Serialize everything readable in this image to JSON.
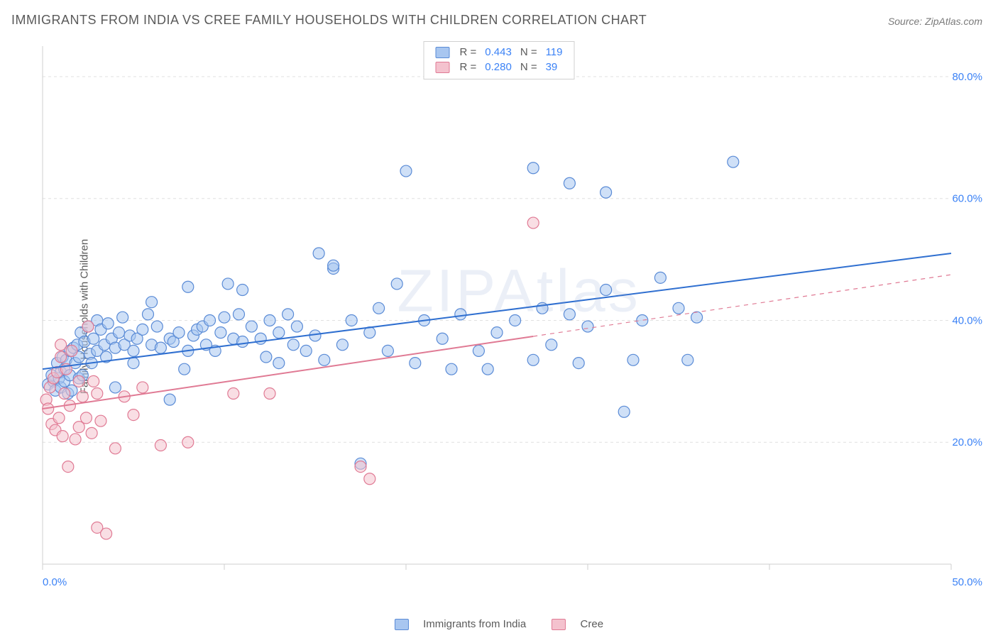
{
  "title": "IMMIGRANTS FROM INDIA VS CREE FAMILY HOUSEHOLDS WITH CHILDREN CORRELATION CHART",
  "source_label": "Source: ZipAtlas.com",
  "ylabel": "Family Households with Children",
  "watermark": "ZIPAtlas",
  "chart": {
    "type": "scatter",
    "xlim": [
      0,
      50
    ],
    "ylim": [
      0,
      85
    ],
    "xtick_step": 10,
    "ytick_step": 20,
    "xtick_labels": [
      "0.0%",
      "10.0%",
      "20.0%",
      "30.0%",
      "40.0%",
      "50.0%"
    ],
    "ytick_labels": [
      "20.0%",
      "40.0%",
      "60.0%",
      "80.0%"
    ],
    "background_color": "#ffffff",
    "grid_color": "#e0e0e0",
    "axis_color": "#cfcfcf",
    "tick_color": "#cfcfcf",
    "label_color": "#5a5a5a",
    "num_color": "#3b82f6",
    "marker_radius": 8,
    "marker_opacity": 0.55,
    "marker_stroke_width": 1.2,
    "line_width": 2
  },
  "series": [
    {
      "name": "Immigrants from India",
      "fill": "#a8c6f0",
      "stroke": "#5a8bd6",
      "line_color": "#2f6fd0",
      "trend": {
        "x1": 0,
        "y1": 32,
        "x2": 50,
        "y2": 51,
        "solid_until_x": 50
      },
      "R": "0.443",
      "N": "119",
      "points": [
        [
          0.3,
          29.5
        ],
        [
          0.5,
          31.0
        ],
        [
          0.6,
          30.0
        ],
        [
          0.7,
          28.5
        ],
        [
          0.8,
          33.0
        ],
        [
          0.9,
          30.5
        ],
        [
          1.0,
          29.0
        ],
        [
          1.0,
          31.5
        ],
        [
          1.1,
          34.0
        ],
        [
          1.2,
          32.0
        ],
        [
          1.2,
          30.0
        ],
        [
          1.3,
          33.5
        ],
        [
          1.4,
          28.0
        ],
        [
          1.5,
          35.0
        ],
        [
          1.5,
          31.0
        ],
        [
          1.6,
          28.5
        ],
        [
          1.7,
          35.5
        ],
        [
          1.8,
          33.0
        ],
        [
          1.9,
          36.0
        ],
        [
          2.0,
          34.0
        ],
        [
          2.0,
          30.5
        ],
        [
          2.1,
          38.0
        ],
        [
          2.2,
          31.0
        ],
        [
          2.3,
          36.5
        ],
        [
          2.5,
          39.0
        ],
        [
          2.6,
          34.5
        ],
        [
          2.7,
          33.0
        ],
        [
          2.8,
          37.0
        ],
        [
          3.0,
          35.0
        ],
        [
          3.0,
          40.0
        ],
        [
          3.2,
          38.5
        ],
        [
          3.4,
          36.0
        ],
        [
          3.5,
          34.0
        ],
        [
          3.6,
          39.5
        ],
        [
          3.8,
          37.0
        ],
        [
          4.0,
          35.5
        ],
        [
          4.0,
          29.0
        ],
        [
          4.2,
          38.0
        ],
        [
          4.4,
          40.5
        ],
        [
          4.5,
          36.0
        ],
        [
          4.8,
          37.5
        ],
        [
          5.0,
          33.0
        ],
        [
          5.0,
          35.0
        ],
        [
          5.2,
          37.0
        ],
        [
          5.5,
          38.5
        ],
        [
          5.8,
          41.0
        ],
        [
          6.0,
          43.0
        ],
        [
          6.0,
          36.0
        ],
        [
          6.3,
          39.0
        ],
        [
          6.5,
          35.5
        ],
        [
          7.0,
          37.0
        ],
        [
          7.0,
          27.0
        ],
        [
          7.2,
          36.5
        ],
        [
          7.5,
          38.0
        ],
        [
          7.8,
          32.0
        ],
        [
          8.0,
          35.0
        ],
        [
          8.0,
          45.5
        ],
        [
          8.3,
          37.5
        ],
        [
          8.5,
          38.5
        ],
        [
          8.8,
          39.0
        ],
        [
          9.0,
          36.0
        ],
        [
          9.2,
          40.0
        ],
        [
          9.5,
          35.0
        ],
        [
          9.8,
          38.0
        ],
        [
          10.0,
          40.5
        ],
        [
          10.2,
          46.0
        ],
        [
          10.5,
          37.0
        ],
        [
          10.8,
          41.0
        ],
        [
          11.0,
          36.5
        ],
        [
          11.0,
          45.0
        ],
        [
          11.5,
          39.0
        ],
        [
          12.0,
          37.0
        ],
        [
          12.3,
          34.0
        ],
        [
          12.5,
          40.0
        ],
        [
          13.0,
          38.0
        ],
        [
          13.0,
          33.0
        ],
        [
          13.5,
          41.0
        ],
        [
          13.8,
          36.0
        ],
        [
          14.0,
          39.0
        ],
        [
          14.5,
          35.0
        ],
        [
          15.0,
          37.5
        ],
        [
          15.2,
          51.0
        ],
        [
          15.5,
          33.5
        ],
        [
          16.0,
          48.5
        ],
        [
          16.0,
          49.0
        ],
        [
          16.5,
          36.0
        ],
        [
          17.0,
          40.0
        ],
        [
          17.5,
          16.5
        ],
        [
          18.0,
          38.0
        ],
        [
          18.5,
          42.0
        ],
        [
          19.0,
          35.0
        ],
        [
          19.5,
          46.0
        ],
        [
          20.0,
          64.5
        ],
        [
          20.5,
          33.0
        ],
        [
          21.0,
          40.0
        ],
        [
          22.0,
          37.0
        ],
        [
          22.5,
          32.0
        ],
        [
          23.0,
          41.0
        ],
        [
          24.0,
          35.0
        ],
        [
          24.5,
          32.0
        ],
        [
          25.0,
          38.0
        ],
        [
          26.0,
          40.0
        ],
        [
          27.0,
          33.5
        ],
        [
          27.0,
          65.0
        ],
        [
          27.5,
          42.0
        ],
        [
          28.0,
          36.0
        ],
        [
          29.0,
          41.0
        ],
        [
          29.0,
          62.5
        ],
        [
          29.5,
          33.0
        ],
        [
          30.0,
          39.0
        ],
        [
          31.0,
          45.0
        ],
        [
          31.0,
          61.0
        ],
        [
          32.0,
          25.0
        ],
        [
          32.5,
          33.5
        ],
        [
          33.0,
          40.0
        ],
        [
          34.0,
          47.0
        ],
        [
          35.0,
          42.0
        ],
        [
          35.5,
          33.5
        ],
        [
          36.0,
          40.5
        ],
        [
          38.0,
          66.0
        ]
      ]
    },
    {
      "name": "Cree",
      "fill": "#f4c2ce",
      "stroke": "#e07a94",
      "line_color": "#e07a94",
      "trend": {
        "x1": 0,
        "y1": 25.5,
        "x2": 50,
        "y2": 47.5,
        "solid_until_x": 27
      },
      "R": "0.280",
      "N": "39",
      "points": [
        [
          0.2,
          27.0
        ],
        [
          0.3,
          25.5
        ],
        [
          0.4,
          29.0
        ],
        [
          0.5,
          23.0
        ],
        [
          0.6,
          30.5
        ],
        [
          0.7,
          22.0
        ],
        [
          0.8,
          31.5
        ],
        [
          0.9,
          24.0
        ],
        [
          1.0,
          34.0
        ],
        [
          1.0,
          36.0
        ],
        [
          1.1,
          21.0
        ],
        [
          1.2,
          28.0
        ],
        [
          1.3,
          32.0
        ],
        [
          1.4,
          16.0
        ],
        [
          1.5,
          26.0
        ],
        [
          1.6,
          35.0
        ],
        [
          1.8,
          20.5
        ],
        [
          2.0,
          30.0
        ],
        [
          2.0,
          22.5
        ],
        [
          2.2,
          27.5
        ],
        [
          2.4,
          24.0
        ],
        [
          2.5,
          39.0
        ],
        [
          2.7,
          21.5
        ],
        [
          2.8,
          30.0
        ],
        [
          3.0,
          6.0
        ],
        [
          3.0,
          28.0
        ],
        [
          3.2,
          23.5
        ],
        [
          3.5,
          5.0
        ],
        [
          4.0,
          19.0
        ],
        [
          4.5,
          27.5
        ],
        [
          5.0,
          24.5
        ],
        [
          5.5,
          29.0
        ],
        [
          6.5,
          19.5
        ],
        [
          8.0,
          20.0
        ],
        [
          10.5,
          28.0
        ],
        [
          12.5,
          28.0
        ],
        [
          18.0,
          14.0
        ],
        [
          17.5,
          16.0
        ],
        [
          27.0,
          56.0
        ]
      ]
    }
  ],
  "r_legend": {
    "rows": [
      {
        "swatch_fill": "#a8c6f0",
        "swatch_stroke": "#5a8bd6",
        "R_label": "R =",
        "R": "0.443",
        "N_label": "N =",
        "N": "119"
      },
      {
        "swatch_fill": "#f4c2ce",
        "swatch_stroke": "#e07a94",
        "R_label": "R =",
        "R": "0.280",
        "N_label": "N =",
        "N": "39"
      }
    ]
  },
  "bottom_legend": {
    "items": [
      {
        "swatch_fill": "#a8c6f0",
        "swatch_stroke": "#5a8bd6",
        "label": "Immigrants from India"
      },
      {
        "swatch_fill": "#f4c2ce",
        "swatch_stroke": "#e07a94",
        "label": "Cree"
      }
    ]
  }
}
